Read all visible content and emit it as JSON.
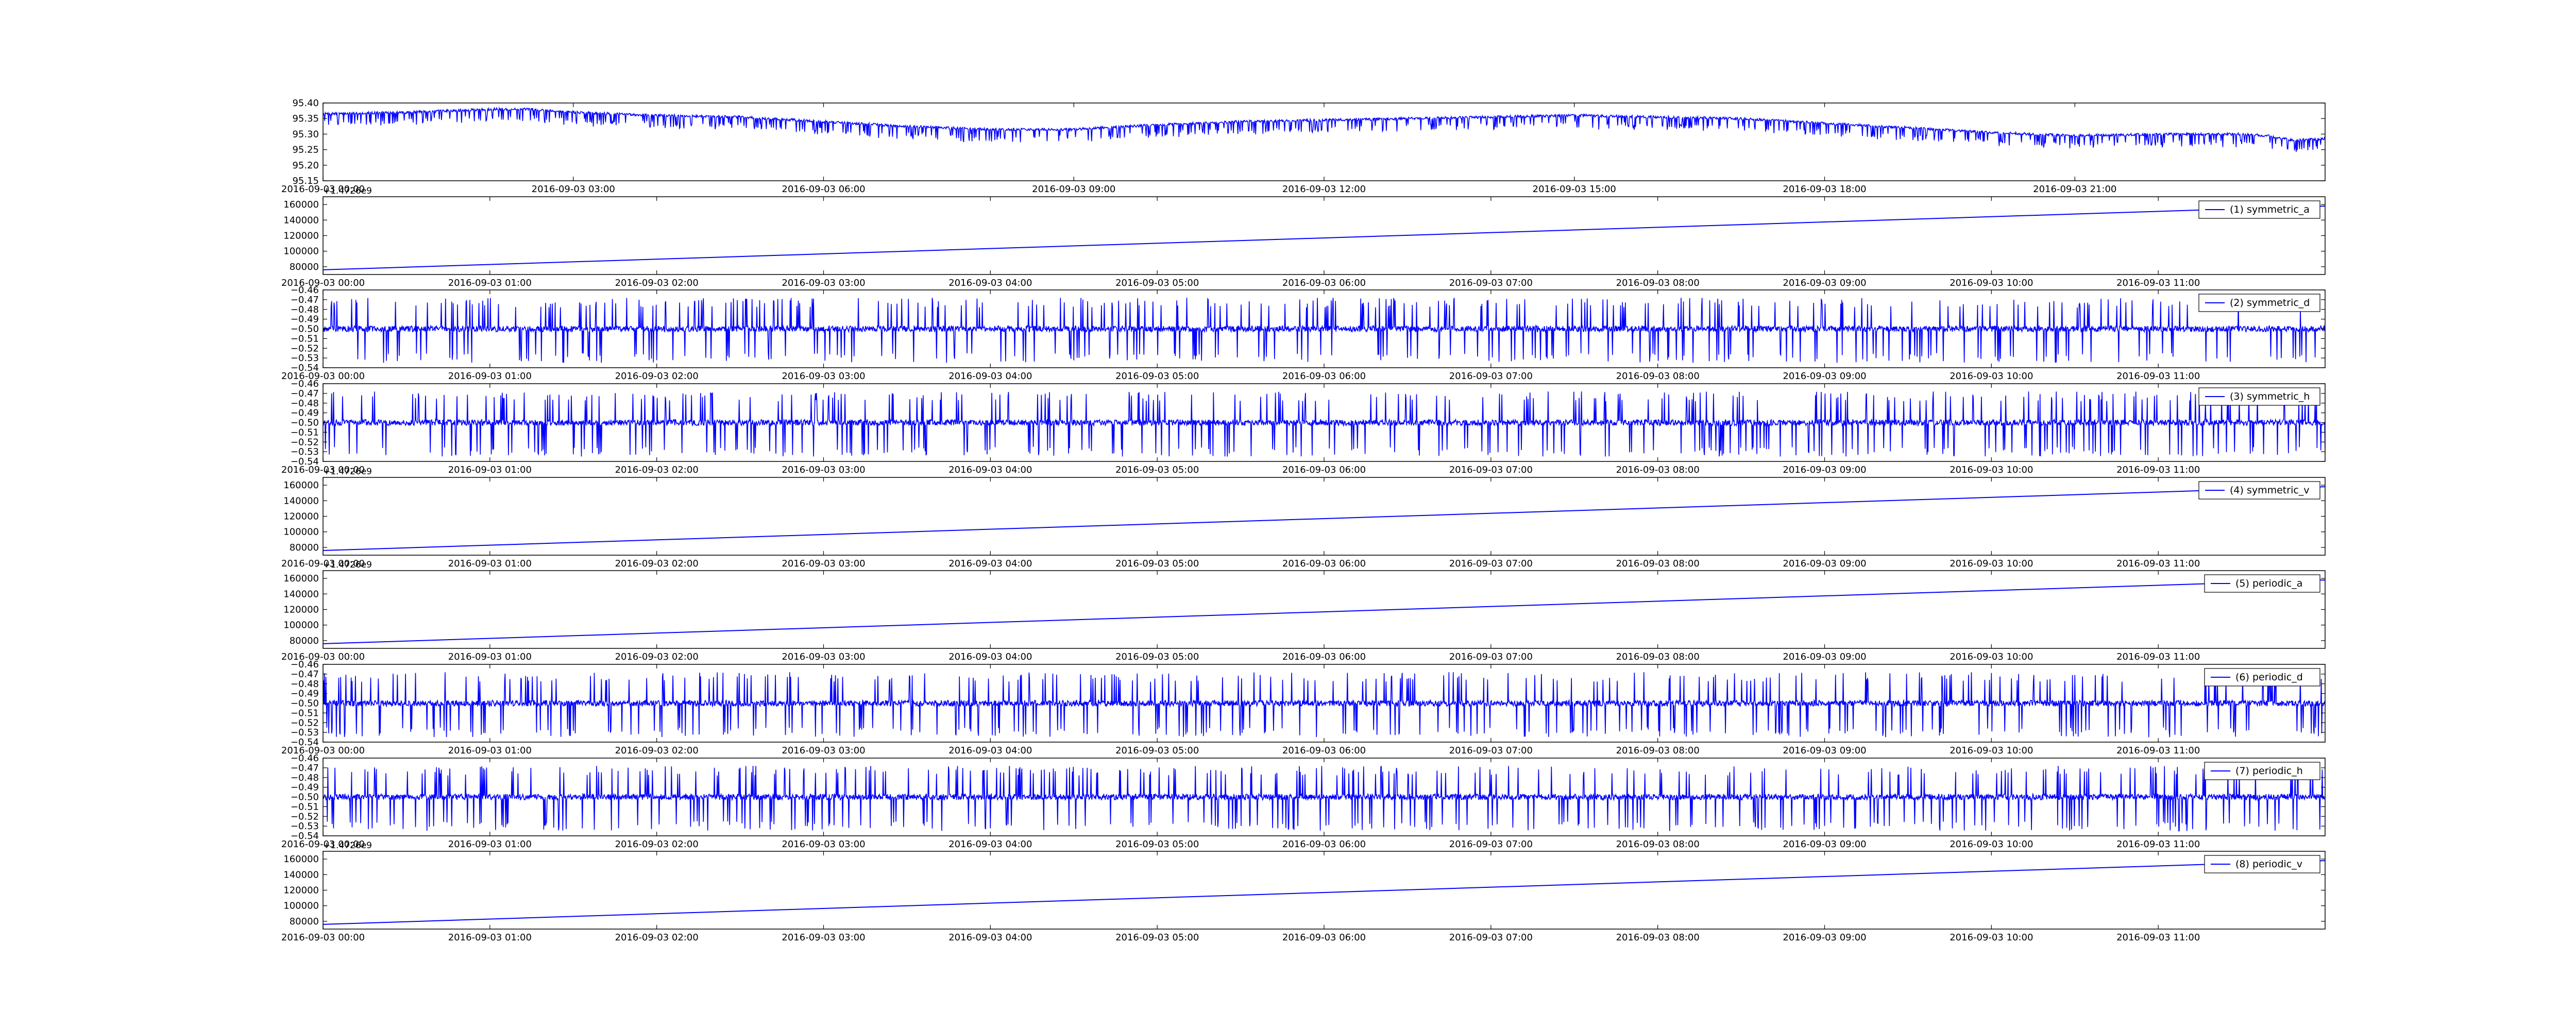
{
  "chart_data": [
    {
      "type": "line",
      "id": "price",
      "xlabels": [
        "2016-09-03 00:00",
        "2016-09-03 03:00",
        "2016-09-03 06:00",
        "2016-09-03 09:00",
        "2016-09-03 12:00",
        "2016-09-03 15:00",
        "2016-09-03 18:00",
        "2016-09-03 21:00"
      ],
      "x_range_hours": [
        0,
        24
      ],
      "ylim": [
        95.15,
        95.4
      ],
      "yticks": [
        "95.40",
        "95.35",
        "95.30",
        "95.25",
        "95.20",
        "95.15"
      ],
      "series": [
        {
          "x_hours": [
            0,
            1,
            2,
            2.5,
            3,
            4,
            5,
            6,
            7,
            8,
            9,
            10,
            11,
            12,
            13,
            14,
            15,
            16,
            17,
            18,
            19,
            20,
            21,
            22,
            23,
            23.3,
            23.6,
            24
          ],
          "values": [
            95.365,
            95.37,
            95.38,
            95.38,
            95.37,
            95.36,
            95.355,
            95.34,
            95.325,
            95.315,
            95.315,
            95.33,
            95.34,
            95.345,
            95.35,
            95.355,
            95.36,
            95.355,
            95.35,
            95.335,
            95.32,
            95.305,
            95.295,
            95.3,
            95.3,
            95.295,
            95.28,
            95.285
          ],
          "spike_depth": 0.04,
          "spike_count": 650
        }
      ],
      "color": "#0000ff"
    },
    {
      "type": "line",
      "id": "symmetric_a",
      "legend": "(1) symmetric_a",
      "offset_text": "+1.4726e9",
      "xlabels": [
        "2016-09-03 00:00",
        "2016-09-03 01:00",
        "2016-09-03 02:00",
        "2016-09-03 03:00",
        "2016-09-03 04:00",
        "2016-09-03 05:00",
        "2016-09-03 06:00",
        "2016-09-03 07:00",
        "2016-09-03 08:00",
        "2016-09-03 09:00",
        "2016-09-03 10:00",
        "2016-09-03 11:00"
      ],
      "x_range_hours": [
        0,
        12
      ],
      "ylim": [
        70000,
        170000
      ],
      "yticks": [
        "160000",
        "140000",
        "120000",
        "100000",
        "80000"
      ],
      "series": [
        {
          "name": "(1) symmetric_a",
          "x_hours": [
            0,
            12
          ],
          "values": [
            76000,
            158000
          ]
        }
      ],
      "color": "#0000ff"
    },
    {
      "type": "line",
      "id": "symmetric_d",
      "legend": "(2) symmetric_d",
      "xlabels": [
        "2016-09-03 00:00",
        "2016-09-03 01:00",
        "2016-09-03 02:00",
        "2016-09-03 03:00",
        "2016-09-03 04:00",
        "2016-09-03 05:00",
        "2016-09-03 06:00",
        "2016-09-03 07:00",
        "2016-09-03 08:00",
        "2016-09-03 09:00",
        "2016-09-03 10:00",
        "2016-09-03 11:00"
      ],
      "x_range_hours": [
        0,
        12
      ],
      "ylim": [
        -0.54,
        -0.46
      ],
      "yticks": [
        "−0.46",
        "−0.47",
        "−0.48",
        "−0.49",
        "−0.50",
        "−0.51",
        "−0.52",
        "−0.53",
        "−0.54"
      ],
      "series": [
        {
          "name": "(2) symmetric_d",
          "baseline": -0.5,
          "noise": 0.003,
          "spike_min": -0.535,
          "spike_max": -0.468,
          "spike_count": 520
        }
      ],
      "color": "#0000ff"
    },
    {
      "type": "line",
      "id": "symmetric_h",
      "legend": "(3) symmetric_h",
      "xlabels": [
        "2016-09-03 00:00",
        "2016-09-03 01:00",
        "2016-09-03 02:00",
        "2016-09-03 03:00",
        "2016-09-03 04:00",
        "2016-09-03 05:00",
        "2016-09-03 06:00",
        "2016-09-03 07:00",
        "2016-09-03 08:00",
        "2016-09-03 09:00",
        "2016-09-03 10:00",
        "2016-09-03 11:00"
      ],
      "x_range_hours": [
        0,
        12
      ],
      "ylim": [
        -0.54,
        -0.46
      ],
      "yticks": [
        "−0.46",
        "−0.47",
        "−0.48",
        "−0.49",
        "−0.50",
        "−0.51",
        "−0.52",
        "−0.53",
        "−0.54"
      ],
      "series": [
        {
          "name": "(3) symmetric_h",
          "baseline": -0.5,
          "noise": 0.003,
          "spike_min": -0.535,
          "spike_max": -0.468,
          "spike_count": 520
        }
      ],
      "color": "#0000ff"
    },
    {
      "type": "line",
      "id": "symmetric_v",
      "legend": "(4) symmetric_v",
      "offset_text": "+1.4726e9",
      "xlabels": [
        "2016-09-03 00:00",
        "2016-09-03 01:00",
        "2016-09-03 02:00",
        "2016-09-03 03:00",
        "2016-09-03 04:00",
        "2016-09-03 05:00",
        "2016-09-03 06:00",
        "2016-09-03 07:00",
        "2016-09-03 08:00",
        "2016-09-03 09:00",
        "2016-09-03 10:00",
        "2016-09-03 11:00"
      ],
      "x_range_hours": [
        0,
        12
      ],
      "ylim": [
        70000,
        170000
      ],
      "yticks": [
        "160000",
        "140000",
        "120000",
        "100000",
        "80000"
      ],
      "series": [
        {
          "name": "(4) symmetric_v",
          "x_hours": [
            0,
            12
          ],
          "values": [
            76000,
            158000
          ]
        }
      ],
      "color": "#0000ff"
    },
    {
      "type": "line",
      "id": "periodic_a",
      "legend": "(5) periodic_a",
      "offset_text": "+1.4726e9",
      "xlabels": [
        "2016-09-03 00:00",
        "2016-09-03 01:00",
        "2016-09-03 02:00",
        "2016-09-03 03:00",
        "2016-09-03 04:00",
        "2016-09-03 05:00",
        "2016-09-03 06:00",
        "2016-09-03 07:00",
        "2016-09-03 08:00",
        "2016-09-03 09:00",
        "2016-09-03 10:00",
        "2016-09-03 11:00"
      ],
      "x_range_hours": [
        0,
        12
      ],
      "ylim": [
        70000,
        170000
      ],
      "yticks": [
        "160000",
        "140000",
        "120000",
        "100000",
        "80000"
      ],
      "series": [
        {
          "name": "(5) periodic_a",
          "x_hours": [
            0,
            12
          ],
          "values": [
            76000,
            158000
          ]
        }
      ],
      "color": "#0000ff"
    },
    {
      "type": "line",
      "id": "periodic_d",
      "legend": "(6) periodic_d",
      "xlabels": [
        "2016-09-03 00:00",
        "2016-09-03 01:00",
        "2016-09-03 02:00",
        "2016-09-03 03:00",
        "2016-09-03 04:00",
        "2016-09-03 05:00",
        "2016-09-03 06:00",
        "2016-09-03 07:00",
        "2016-09-03 08:00",
        "2016-09-03 09:00",
        "2016-09-03 10:00",
        "2016-09-03 11:00"
      ],
      "x_range_hours": [
        0,
        12
      ],
      "ylim": [
        -0.54,
        -0.46
      ],
      "yticks": [
        "−0.46",
        "−0.47",
        "−0.48",
        "−0.49",
        "−0.50",
        "−0.51",
        "−0.52",
        "−0.53",
        "−0.54"
      ],
      "series": [
        {
          "name": "(6) periodic_d",
          "baseline": -0.5,
          "noise": 0.003,
          "spike_min": -0.535,
          "spike_max": -0.468,
          "spike_count": 520
        }
      ],
      "color": "#0000ff"
    },
    {
      "type": "line",
      "id": "periodic_h",
      "legend": "(7) periodic_h",
      "xlabels": [
        "2016-09-03 00:00",
        "2016-09-03 01:00",
        "2016-09-03 02:00",
        "2016-09-03 03:00",
        "2016-09-03 04:00",
        "2016-09-03 05:00",
        "2016-09-03 06:00",
        "2016-09-03 07:00",
        "2016-09-03 08:00",
        "2016-09-03 09:00",
        "2016-09-03 10:00",
        "2016-09-03 11:00"
      ],
      "x_range_hours": [
        0,
        12
      ],
      "ylim": [
        -0.54,
        -0.46
      ],
      "yticks": [
        "−0.46",
        "−0.47",
        "−0.48",
        "−0.49",
        "−0.50",
        "−0.51",
        "−0.52",
        "−0.53",
        "−0.54"
      ],
      "series": [
        {
          "name": "(7) periodic_h",
          "baseline": -0.5,
          "noise": 0.003,
          "spike_min": -0.535,
          "spike_max": -0.468,
          "spike_count": 520
        }
      ],
      "color": "#0000ff"
    },
    {
      "type": "line",
      "id": "periodic_v",
      "legend": "(8) periodic_v",
      "offset_text": "+1.4726e9",
      "xlabels": [
        "2016-09-03 00:00",
        "2016-09-03 01:00",
        "2016-09-03 02:00",
        "2016-09-03 03:00",
        "2016-09-03 04:00",
        "2016-09-03 05:00",
        "2016-09-03 06:00",
        "2016-09-03 07:00",
        "2016-09-03 08:00",
        "2016-09-03 09:00",
        "2016-09-03 10:00",
        "2016-09-03 11:00"
      ],
      "x_range_hours": [
        0,
        12
      ],
      "ylim": [
        70000,
        170000
      ],
      "yticks": [
        "160000",
        "140000",
        "120000",
        "100000",
        "80000"
      ],
      "series": [
        {
          "name": "(8) periodic_v",
          "x_hours": [
            0,
            12
          ],
          "values": [
            76000,
            158000
          ]
        }
      ],
      "color": "#0000ff"
    }
  ]
}
